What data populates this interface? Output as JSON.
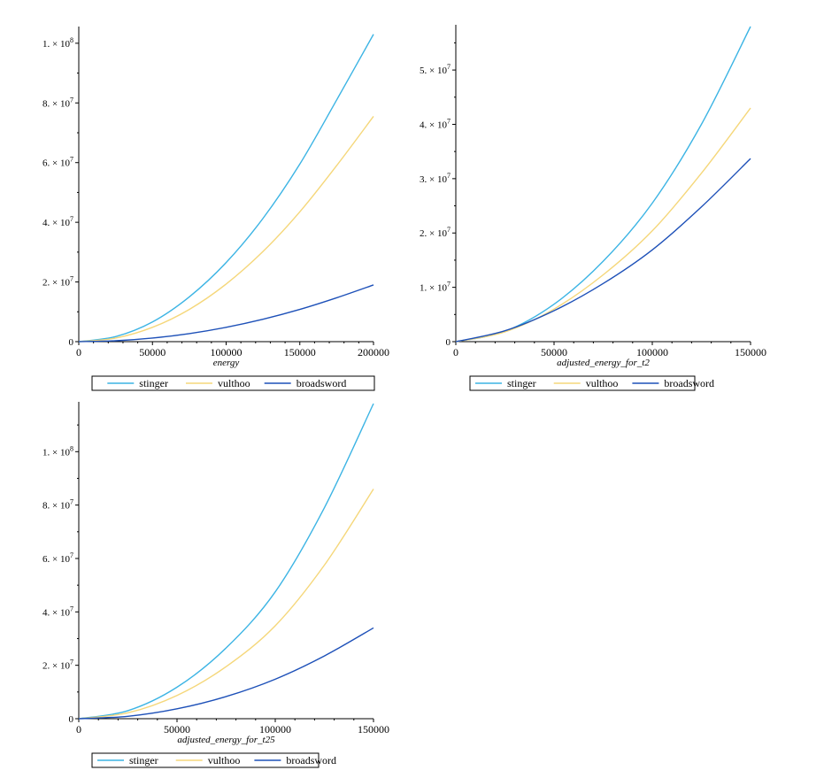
{
  "chart_data": [
    {
      "type": "line",
      "xlabel": "energy",
      "ylabel": "",
      "xlim": [
        0,
        200000
      ],
      "ylim": [
        0,
        105000000
      ],
      "x_ticks": [
        {
          "value": 0,
          "label": "0"
        },
        {
          "value": 50000,
          "label": "50000"
        },
        {
          "value": 100000,
          "label": "100000"
        },
        {
          "value": 150000,
          "label": "150000"
        },
        {
          "value": 200000,
          "label": "200000"
        }
      ],
      "y_ticks": [
        {
          "value": 0,
          "label": "0"
        },
        {
          "value": 20000000,
          "mantissa": "2.",
          "base": "10",
          "exponent": "7"
        },
        {
          "value": 40000000,
          "mantissa": "4.",
          "base": "10",
          "exponent": "7"
        },
        {
          "value": 60000000,
          "mantissa": "6.",
          "base": "10",
          "exponent": "7"
        },
        {
          "value": 80000000,
          "mantissa": "8.",
          "base": "10",
          "exponent": "7"
        },
        {
          "value": 100000000,
          "mantissa": "1.",
          "base": "10",
          "exponent": "8"
        }
      ],
      "y_minor_ticks": [
        10000000,
        30000000,
        50000000,
        70000000,
        90000000
      ],
      "x": [
        0,
        25000,
        50000,
        75000,
        100000,
        125000,
        150000,
        175000,
        200000
      ],
      "series": [
        {
          "name": "stinger",
          "color": "#3cb4e4",
          "values": [
            0,
            1700000,
            6600000,
            15000000,
            26500000,
            41300000,
            59500000,
            81000000,
            103000000
          ]
        },
        {
          "name": "vulthoo",
          "color": "#f5d77a",
          "values": [
            0,
            1200000,
            4800000,
            10800000,
            19300000,
            30200000,
            43500000,
            59000000,
            75500000
          ]
        },
        {
          "name": "broadsword",
          "color": "#1d50b8",
          "values": [
            0,
            300000,
            1200000,
            2700000,
            4800000,
            7500000,
            10800000,
            14700000,
            19000000
          ]
        }
      ]
    },
    {
      "type": "line",
      "xlabel": "adjusted_energy_for_t2",
      "ylabel": "",
      "xlim": [
        0,
        150000
      ],
      "ylim": [
        0,
        58000000
      ],
      "x_ticks": [
        {
          "value": 0,
          "label": "0"
        },
        {
          "value": 50000,
          "label": "50000"
        },
        {
          "value": 100000,
          "label": "100000"
        },
        {
          "value": 150000,
          "label": "150000"
        }
      ],
      "y_ticks": [
        {
          "value": 0,
          "label": "0"
        },
        {
          "value": 10000000,
          "mantissa": "1.",
          "base": "10",
          "exponent": "7"
        },
        {
          "value": 20000000,
          "mantissa": "2.",
          "base": "10",
          "exponent": "7"
        },
        {
          "value": 30000000,
          "mantissa": "3.",
          "base": "10",
          "exponent": "7"
        },
        {
          "value": 40000000,
          "mantissa": "4.",
          "base": "10",
          "exponent": "7"
        },
        {
          "value": 50000000,
          "mantissa": "5.",
          "base": "10",
          "exponent": "7"
        }
      ],
      "y_minor_ticks": [
        5000000,
        15000000,
        25000000,
        35000000,
        45000000,
        55000000
      ],
      "x": [
        0,
        25000,
        50000,
        75000,
        100000,
        125000,
        150000
      ],
      "series": [
        {
          "name": "stinger",
          "color": "#3cb4e4",
          "values": [
            0,
            1900000,
            6900000,
            14800000,
            25500000,
            40000000,
            58000000
          ]
        },
        {
          "name": "vulthoo",
          "color": "#f5d77a",
          "values": [
            0,
            1800000,
            6000000,
            12300000,
            20400000,
            31000000,
            43000000
          ]
        },
        {
          "name": "broadsword",
          "color": "#1d50b8",
          "values": [
            0,
            2000000,
            5700000,
            10700000,
            16900000,
            24800000,
            33700000
          ]
        }
      ]
    },
    {
      "type": "line",
      "xlabel": "adjusted_energy_for_t25",
      "ylabel": "",
      "xlim": [
        0,
        150000
      ],
      "ylim": [
        0,
        118000000
      ],
      "x_ticks": [
        {
          "value": 0,
          "label": "0"
        },
        {
          "value": 50000,
          "label": "50000"
        },
        {
          "value": 100000,
          "label": "100000"
        },
        {
          "value": 150000,
          "label": "150000"
        }
      ],
      "y_ticks": [
        {
          "value": 0,
          "label": "0"
        },
        {
          "value": 20000000,
          "mantissa": "2.",
          "base": "10",
          "exponent": "7"
        },
        {
          "value": 40000000,
          "mantissa": "4.",
          "base": "10",
          "exponent": "7"
        },
        {
          "value": 60000000,
          "mantissa": "6.",
          "base": "10",
          "exponent": "7"
        },
        {
          "value": 80000000,
          "mantissa": "8.",
          "base": "10",
          "exponent": "7"
        },
        {
          "value": 100000000,
          "mantissa": "1.",
          "base": "10",
          "exponent": "8"
        }
      ],
      "y_minor_ticks": [
        10000000,
        30000000,
        50000000,
        70000000,
        90000000,
        110000000
      ],
      "x": [
        0,
        25000,
        50000,
        75000,
        100000,
        125000,
        150000
      ],
      "series": [
        {
          "name": "stinger",
          "color": "#3cb4e4",
          "values": [
            0,
            3000000,
            11800000,
            26500000,
            47500000,
            79000000,
            118000000
          ]
        },
        {
          "name": "vulthoo",
          "color": "#f5d77a",
          "values": [
            0,
            2200000,
            8700000,
            19500000,
            34800000,
            57500000,
            86000000
          ]
        },
        {
          "name": "broadsword",
          "color": "#1d50b8",
          "values": [
            0,
            900000,
            3700000,
            8300000,
            14800000,
            23500000,
            34000000
          ]
        }
      ]
    }
  ]
}
